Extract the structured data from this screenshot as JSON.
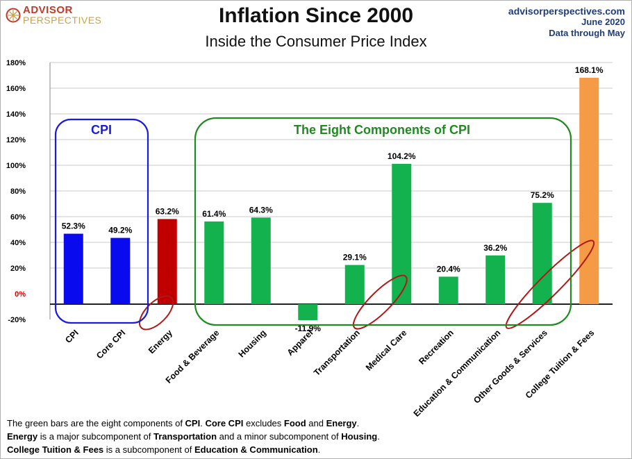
{
  "brand": {
    "line1": "ADVISOR",
    "line2": "PERSPECTIVES"
  },
  "title": "Inflation Since 2000",
  "subtitle": "Inside the Consumer Price Index",
  "source": {
    "site": "advisorperspectives.com",
    "date": "June 2020",
    "note": "Data through May"
  },
  "boxes": {
    "cpi_label": "CPI",
    "components_label": "The Eight Components of CPI"
  },
  "footer": {
    "l1_a": "The green bars are the eight components of ",
    "l1_b": "CPI",
    "l1_c": ". ",
    "l1_d": "Core CPI",
    "l1_e": " excludes ",
    "l1_f": "Food",
    "l1_g": " and ",
    "l1_h": "Energy",
    "l1_i": ".",
    "l2_a": "Energy",
    "l2_b": " is a  major subcomponent of ",
    "l2_c": "Transportation",
    "l2_d": " and a minor subcomponent of ",
    "l2_e": "Housing",
    "l2_f": ".",
    "l3_a": "College Tuition & Fees",
    "l3_b": " is a subcomponent of ",
    "l3_c": "Education & Communication",
    "l3_d": "."
  },
  "colors": {
    "cpi": "#0a0aef",
    "energy": "#c00000",
    "component": "#13b24e",
    "tuition": "#f59a45",
    "cpi_box": "#1a1ae6",
    "components_box": "#1f8a1f",
    "circle": "#b01818"
  },
  "chart_data": {
    "type": "bar",
    "categories": [
      "CPI",
      "Core CPI",
      "Energy",
      "Food & Beverage",
      "Housing",
      "Apparel",
      "Transportation",
      "Medical Care",
      "Recreation",
      "Education & Communication",
      "Other Goods & Services",
      "College Tuition & Fees"
    ],
    "values": [
      52.3,
      49.2,
      63.2,
      61.4,
      64.3,
      -11.9,
      29.1,
      104.2,
      20.4,
      36.2,
      75.2,
      168.1
    ],
    "value_labels": [
      "52.3%",
      "49.2%",
      "63.2%",
      "61.4%",
      "64.3%",
      "-11.9%",
      "29.1%",
      "104.2%",
      "20.4%",
      "36.2%",
      "75.2%",
      "168.1%"
    ],
    "bar_groups": [
      "cpi",
      "cpi",
      "energy",
      "component",
      "component",
      "component",
      "component",
      "component",
      "component",
      "component",
      "component",
      "tuition"
    ],
    "circled": [
      "Energy",
      "Medical Care",
      "College Tuition & Fees"
    ],
    "yticks": [
      "-20%",
      "0%",
      "20%",
      "40%",
      "60%",
      "80%",
      "100%",
      "120%",
      "140%",
      "160%",
      "180%"
    ],
    "ytick_values": [
      -20,
      0,
      20,
      40,
      60,
      80,
      100,
      120,
      140,
      160,
      180
    ],
    "ylim": [
      -20,
      180
    ],
    "grid": true,
    "legend": "none"
  }
}
